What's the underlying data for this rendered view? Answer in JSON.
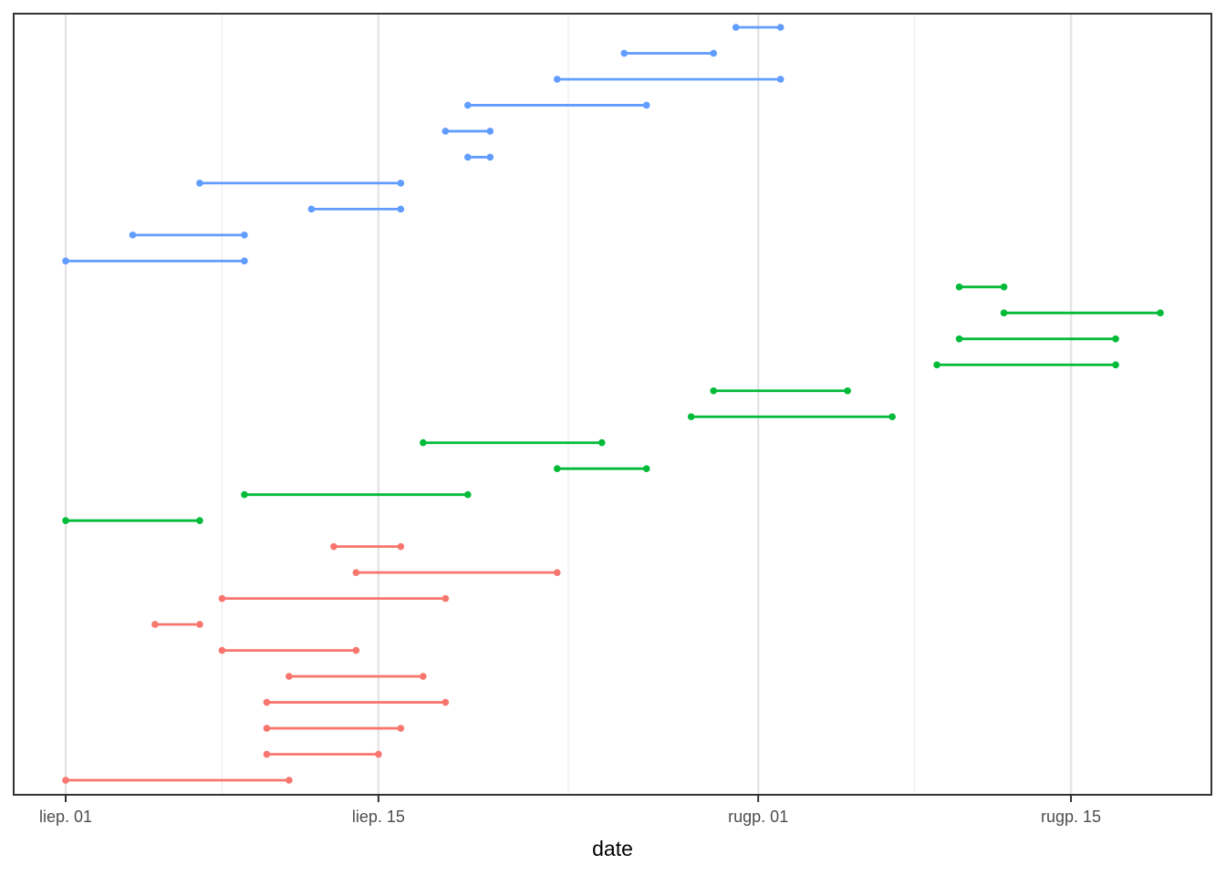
{
  "chart_data": {
    "type": "segment",
    "description": "Gantt-style horizontal date-range segments with endpoint dots, 30 rows in three color groups (blue top, green middle, red bottom), no y-axis labels, no legend",
    "title": "",
    "xlabel": "date",
    "ylabel": "",
    "legend_position": "none",
    "grid": "on",
    "x_day_zero_label": "liep. 01",
    "x_domain_days": [
      -2.45,
      51.45
    ],
    "x_ticks": [
      {
        "day": 0,
        "label": "liep. 01"
      },
      {
        "day": 14,
        "label": "liep. 15"
      },
      {
        "day": 31,
        "label": "rugp. 01"
      },
      {
        "day": 45,
        "label": "rugp. 15"
      }
    ],
    "x_minor_gridline_days": [
      7,
      22.5,
      38
    ],
    "y_axis": {
      "labels_visible": false,
      "row_count": 30
    },
    "series": [
      {
        "name": "group-blue",
        "color": "#619CFF",
        "segments": [
          {
            "row": 1,
            "start_day": 30,
            "end_day": 32,
            "start": "liep. 31",
            "end": "rugp. 02"
          },
          {
            "row": 2,
            "start_day": 25,
            "end_day": 29,
            "start": "liep. 26",
            "end": "liep. 30"
          },
          {
            "row": 3,
            "start_day": 22,
            "end_day": 32,
            "start": "liep. 23",
            "end": "rugp. 02"
          },
          {
            "row": 4,
            "start_day": 18,
            "end_day": 26,
            "start": "liep. 19",
            "end": "liep. 27"
          },
          {
            "row": 5,
            "start_day": 17,
            "end_day": 19,
            "start": "liep. 18",
            "end": "liep. 20"
          },
          {
            "row": 6,
            "start_day": 18,
            "end_day": 19,
            "start": "liep. 19",
            "end": "liep. 20"
          },
          {
            "row": 7,
            "start_day": 6,
            "end_day": 15,
            "start": "liep. 07",
            "end": "liep. 16"
          },
          {
            "row": 8,
            "start_day": 11,
            "end_day": 15,
            "start": "liep. 12",
            "end": "liep. 16"
          },
          {
            "row": 9,
            "start_day": 3,
            "end_day": 8,
            "start": "liep. 04",
            "end": "liep. 09"
          },
          {
            "row": 10,
            "start_day": 0,
            "end_day": 8,
            "start": "liep. 01",
            "end": "liep. 09"
          }
        ]
      },
      {
        "name": "group-green",
        "color": "#00BA38",
        "segments": [
          {
            "row": 11,
            "start_day": 40,
            "end_day": 42,
            "start": "rugp. 10",
            "end": "rugp. 12"
          },
          {
            "row": 12,
            "start_day": 42,
            "end_day": 49,
            "start": "rugp. 12",
            "end": "rugp. 19"
          },
          {
            "row": 13,
            "start_day": 40,
            "end_day": 47,
            "start": "rugp. 10",
            "end": "rugp. 17"
          },
          {
            "row": 14,
            "start_day": 39,
            "end_day": 47,
            "start": "rugp. 09",
            "end": "rugp. 17"
          },
          {
            "row": 15,
            "start_day": 29,
            "end_day": 35,
            "start": "liep. 30",
            "end": "rugp. 05"
          },
          {
            "row": 16,
            "start_day": 28,
            "end_day": 37,
            "start": "liep. 29",
            "end": "rugp. 07"
          },
          {
            "row": 17,
            "start_day": 16,
            "end_day": 24,
            "start": "liep. 17",
            "end": "liep. 25"
          },
          {
            "row": 18,
            "start_day": 22,
            "end_day": 26,
            "start": "liep. 23",
            "end": "liep. 27"
          },
          {
            "row": 19,
            "start_day": 8,
            "end_day": 18,
            "start": "liep. 09",
            "end": "liep. 19"
          },
          {
            "row": 20,
            "start_day": 0,
            "end_day": 6,
            "start": "liep. 01",
            "end": "liep. 07"
          }
        ]
      },
      {
        "name": "group-red",
        "color": "#F8766D",
        "segments": [
          {
            "row": 21,
            "start_day": 12,
            "end_day": 15,
            "start": "liep. 13",
            "end": "liep. 16"
          },
          {
            "row": 22,
            "start_day": 13,
            "end_day": 22,
            "start": "liep. 14",
            "end": "liep. 23"
          },
          {
            "row": 23,
            "start_day": 7,
            "end_day": 17,
            "start": "liep. 08",
            "end": "liep. 18"
          },
          {
            "row": 24,
            "start_day": 4,
            "end_day": 6,
            "start": "liep. 05",
            "end": "liep. 07"
          },
          {
            "row": 25,
            "start_day": 7,
            "end_day": 13,
            "start": "liep. 08",
            "end": "liep. 14"
          },
          {
            "row": 26,
            "start_day": 10,
            "end_day": 16,
            "start": "liep. 11",
            "end": "liep. 17"
          },
          {
            "row": 27,
            "start_day": 9,
            "end_day": 17,
            "start": "liep. 10",
            "end": "liep. 18"
          },
          {
            "row": 28,
            "start_day": 9,
            "end_day": 15,
            "start": "liep. 10",
            "end": "liep. 16"
          },
          {
            "row": 29,
            "start_day": 9,
            "end_day": 14,
            "start": "liep. 10",
            "end": "liep. 15"
          },
          {
            "row": 30,
            "start_day": 0,
            "end_day": 10,
            "start": "liep. 01",
            "end": "liep. 11"
          }
        ]
      }
    ],
    "style": {
      "background": "#FFFFFF",
      "panel_border": "#333333",
      "grid_major": "#E4E4E4",
      "grid_minor": "#EFEFEF",
      "tick_color": "#333333",
      "tick_label_color": "#4D4D4D",
      "axis_title_color": "#000000"
    }
  }
}
